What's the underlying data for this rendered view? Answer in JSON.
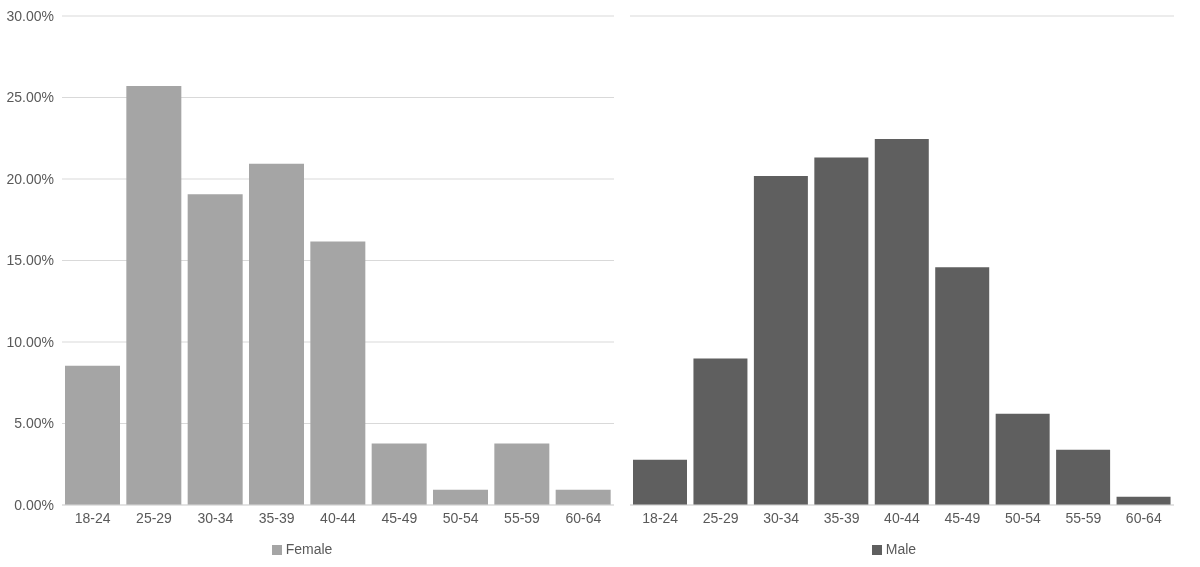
{
  "chart_data": [
    {
      "type": "bar",
      "categories": [
        "18-24",
        "25-29",
        "30-34",
        "35-39",
        "40-44",
        "45-49",
        "50-54",
        "55-59",
        "60-64"
      ],
      "series": [
        {
          "name": "Female",
          "color": "#a5a5a5",
          "values": [
            8.55,
            25.7,
            19.06,
            20.94,
            16.16,
            3.77,
            0.94,
            3.77,
            0.94
          ]
        }
      ],
      "ylim": [
        0,
        30
      ],
      "yticks": [
        {
          "value": 0,
          "label": "0.00%"
        },
        {
          "value": 5,
          "label": "5.00%"
        },
        {
          "value": 10,
          "label": "10.00%"
        },
        {
          "value": 15,
          "label": "15.00%"
        },
        {
          "value": 20,
          "label": "20.00%"
        },
        {
          "value": 25,
          "label": "25.00%"
        },
        {
          "value": 30,
          "label": "30.00%"
        }
      ],
      "grid": "y",
      "legend": "bottom"
    },
    {
      "type": "bar",
      "categories": [
        "18-24",
        "25-29",
        "30-34",
        "35-39",
        "40-44",
        "45-49",
        "50-54",
        "55-59",
        "60-64"
      ],
      "series": [
        {
          "name": "Male",
          "color": "#5f5f5f",
          "values": [
            2.77,
            8.99,
            20.19,
            21.32,
            22.45,
            14.59,
            5.6,
            3.39,
            0.5
          ]
        }
      ],
      "ylim": [
        0,
        30
      ],
      "yticks": [
        {
          "value": 0,
          "label": null
        },
        {
          "value": 5,
          "label": null
        },
        {
          "value": 10,
          "label": null
        },
        {
          "value": 15,
          "label": null
        },
        {
          "value": 20,
          "label": null
        },
        {
          "value": 25,
          "label": null
        },
        {
          "value": 30,
          "label": null
        }
      ],
      "grid": "y",
      "legend": "bottom",
      "tick_labels": "x"
    }
  ]
}
